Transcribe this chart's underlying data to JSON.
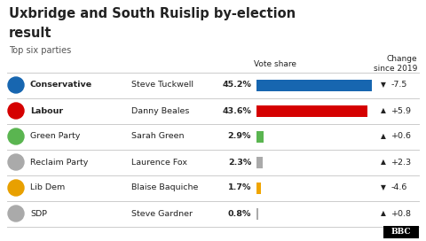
{
  "title1": "Uxbridge and South Ruislip by-election",
  "title2": "result",
  "subtitle": "Top six parties",
  "col_header_vote": "Vote share",
  "col_header_change": "Change\nsince 2019",
  "parties": [
    {
      "name": "Conservative",
      "candidate": "Steve Tuckwell",
      "vote": 45.2,
      "vote_str": "45.2%",
      "change_str": "-7.5",
      "bar_color": "#1766b0",
      "icon_color": "#1766b0",
      "arrow": "down"
    },
    {
      "name": "Labour",
      "candidate": "Danny Beales",
      "vote": 43.6,
      "vote_str": "43.6%",
      "change_str": "+5.9",
      "bar_color": "#d50000",
      "icon_color": "#d50000",
      "arrow": "up"
    },
    {
      "name": "Green Party",
      "candidate": "Sarah Green",
      "vote": 2.9,
      "vote_str": "2.9%",
      "change_str": "+0.6",
      "bar_color": "#5ab550",
      "icon_color": "#5ab550",
      "arrow": "up"
    },
    {
      "name": "Reclaim Party",
      "candidate": "Laurence Fox",
      "vote": 2.3,
      "vote_str": "2.3%",
      "change_str": "+2.3",
      "bar_color": "#aaaaaa",
      "icon_color": "#aaaaaa",
      "arrow": "up"
    },
    {
      "name": "Lib Dem",
      "candidate": "Blaise Baquiche",
      "vote": 1.7,
      "vote_str": "1.7%",
      "change_str": "-4.6",
      "bar_color": "#f0a500",
      "icon_color": "#e8a000",
      "arrow": "down"
    },
    {
      "name": "SDP",
      "candidate": "Steve Gardner",
      "vote": 0.8,
      "vote_str": "0.8%",
      "change_str": "+0.8",
      "bar_color": "#aaaaaa",
      "icon_color": "#aaaaaa",
      "arrow": "up"
    }
  ],
  "max_bar_vote": 45.2,
  "background_color": "#ffffff",
  "text_color": "#222222",
  "divider_color": "#cccccc"
}
